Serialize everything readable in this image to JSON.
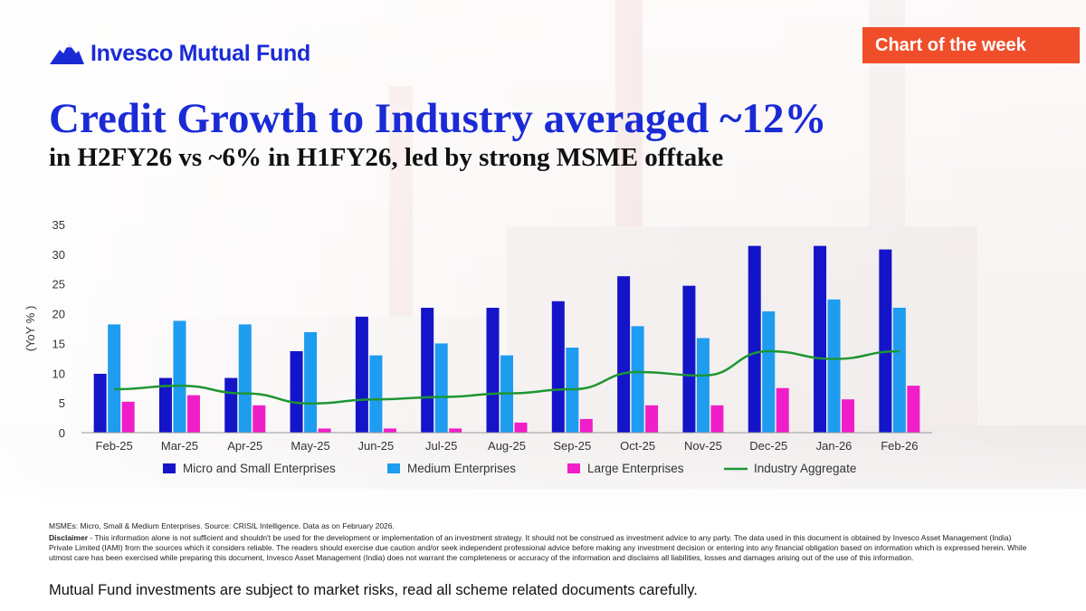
{
  "brand": {
    "name": "Invesco Mutual Fund",
    "color": "#1a2bd6",
    "logo_icon": "mountain-peak-icon"
  },
  "tag": {
    "label": "Chart of the week",
    "color": "#f04e2a"
  },
  "heading": {
    "title": "Credit Growth to Industry averaged ~12%",
    "subtitle": "in H2FY26 vs ~6% in H1FY26, led by strong MSME offtake"
  },
  "chart_data": {
    "type": "bar",
    "ylabel": "(YoY % )",
    "ylim": [
      0,
      35
    ],
    "yticks": [
      0,
      5,
      10,
      15,
      20,
      25,
      30,
      35
    ],
    "categories": [
      "Feb-25",
      "Mar-25",
      "Apr-25",
      "May-25",
      "Jun-25",
      "Jul-25",
      "Aug-25",
      "Sep-25",
      "Oct-25",
      "Nov-25",
      "Dec-25",
      "Jan-26",
      "Feb-26"
    ],
    "series": [
      {
        "name": "Micro and Small Enterprises",
        "type": "bar",
        "color": "#1414c8",
        "values": [
          9.9,
          9.2,
          9.2,
          13.7,
          19.5,
          21.0,
          21.0,
          22.1,
          26.3,
          24.7,
          31.4,
          31.4,
          30.8
        ]
      },
      {
        "name": "Medium Enterprises",
        "type": "bar",
        "color": "#1e9cf0",
        "values": [
          18.2,
          18.8,
          18.2,
          16.9,
          13.0,
          15.0,
          13.0,
          14.3,
          17.9,
          15.9,
          20.4,
          22.4,
          21.0
        ]
      },
      {
        "name": "Large Enterprises",
        "type": "bar",
        "color": "#f01ec8",
        "values": [
          5.2,
          6.3,
          4.6,
          0.7,
          0.7,
          0.7,
          1.7,
          2.3,
          4.6,
          4.6,
          7.5,
          5.6,
          7.9
        ]
      },
      {
        "name": "Industry Aggregate",
        "type": "line",
        "color": "#1e9632",
        "values": [
          7.3,
          7.9,
          6.6,
          4.9,
          5.6,
          6.0,
          6.6,
          7.3,
          10.2,
          9.6,
          13.7,
          12.4,
          13.7
        ]
      }
    ],
    "legend_position": "bottom",
    "grid": false
  },
  "footer": {
    "note": "MSMEs: Micro, Small & Medium Enterprises. Source: CRISIL Intelligence. Data as on February 2026.",
    "disclaimer_label": "Disclaimer",
    "disclaimer_text": " - This information alone is not sufficient and shouldn't be used for the development or implementation of an investment strategy. It should not be construed as investment advice to any party. The data used in this document is obtained by Invesco Asset Management (India) Private Limited (IAMI) from the sources which it considers reliable. The readers should exercise due caution and/or seek independent professional advice before making any investment decision or entering into any financial obligation based on information which is expressed herein. While utmost care has been exercised while preparing this document, Invesco Asset Management (India) does not warrant the completeness or accuracy of the information and disclaims all liabilities, losses and damages arising out of the use of this information.",
    "risk_statement": "Mutual Fund investments are subject to market risks, read all scheme related documents carefully."
  }
}
